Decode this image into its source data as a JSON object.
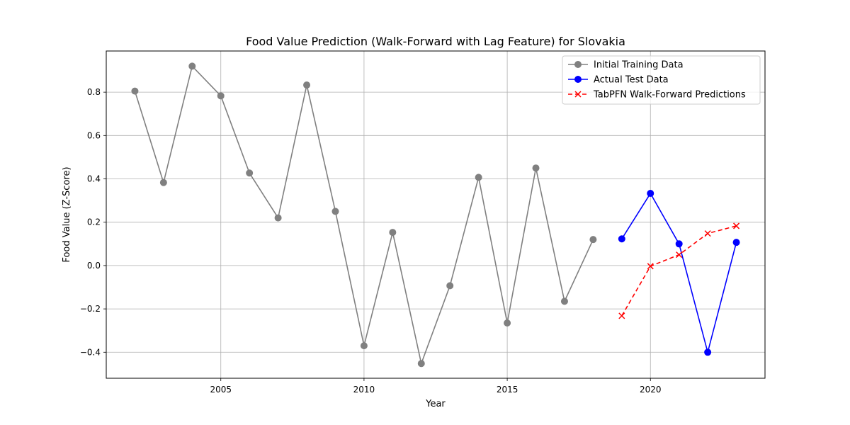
{
  "chart_data": {
    "type": "line",
    "title": "Food Value Prediction (Walk-Forward with Lag Feature) for Slovakia",
    "xlabel": "Year",
    "ylabel": "Food Value (Z-Score)",
    "xlim": [
      2001,
      2024
    ],
    "ylim": [
      -0.52,
      0.99
    ],
    "xticks": [
      2005,
      2010,
      2015,
      2020
    ],
    "yticks": [
      -0.4,
      -0.2,
      0.0,
      0.2,
      0.4,
      0.6,
      0.8
    ],
    "ytick_labels": [
      "−0.4",
      "−0.2",
      "0.0",
      "0.2",
      "0.4",
      "0.6",
      "0.8"
    ],
    "grid": true,
    "legend_position": "top-right",
    "series": [
      {
        "name": "Initial Training Data",
        "color": "#808080",
        "marker": "circle",
        "linestyle": "solid",
        "x": [
          2002,
          2003,
          2004,
          2005,
          2006,
          2007,
          2008,
          2009,
          2010,
          2011,
          2012,
          2013,
          2014,
          2015,
          2016,
          2017,
          2018
        ],
        "y": [
          0.805,
          0.383,
          0.92,
          0.783,
          0.427,
          0.22,
          0.833,
          0.25,
          -0.37,
          0.153,
          -0.452,
          -0.093,
          0.407,
          -0.265,
          0.45,
          -0.165,
          0.12
        ]
      },
      {
        "name": "Actual Test Data",
        "color": "#0000ff",
        "marker": "circle",
        "linestyle": "solid",
        "x": [
          2019,
          2020,
          2021,
          2022,
          2023
        ],
        "y": [
          0.123,
          0.333,
          0.1,
          -0.4,
          0.107
        ]
      },
      {
        "name": "TabPFN Walk-Forward Predictions",
        "color": "#ff0000",
        "marker": "x",
        "linestyle": "dashed",
        "x": [
          2019,
          2020,
          2021,
          2022,
          2023
        ],
        "y": [
          -0.232,
          -0.003,
          0.05,
          0.148,
          0.183
        ]
      }
    ]
  }
}
